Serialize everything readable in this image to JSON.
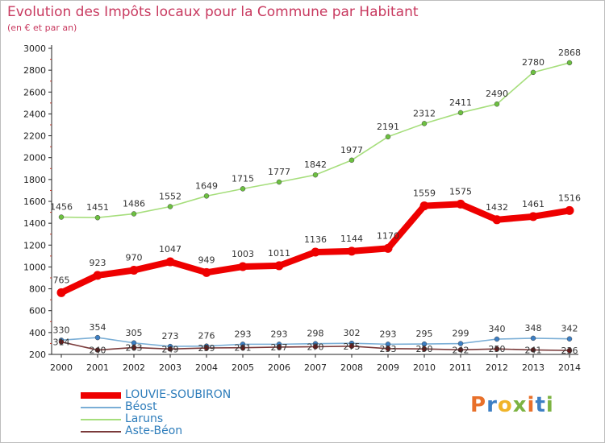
{
  "title": "Evolution des Impôts locaux pour la Commune par Habitant",
  "subtitle": "(en € et par an)",
  "logo": {
    "text": "Proxiti",
    "colors": [
      "#e8702a",
      "#3d7fc4",
      "#f0b429",
      "#7cb342",
      "#e8702a",
      "#3d7fc4",
      "#7cb342"
    ]
  },
  "chart_data": {
    "type": "line",
    "title": "Evolution des Impôts locaux pour la Commune par Habitant",
    "subtitle": "(en € et par an)",
    "xlabel": "",
    "ylabel": "",
    "categories": [
      "2000",
      "2001",
      "2002",
      "2003",
      "2004",
      "2005",
      "2006",
      "2007",
      "2008",
      "2009",
      "2010",
      "2011",
      "2012",
      "2013",
      "2014"
    ],
    "yticks": [
      200,
      400,
      600,
      800,
      1000,
      1200,
      1400,
      1600,
      1800,
      2000,
      2200,
      2400,
      2600,
      2800,
      3000
    ],
    "ylim": [
      200,
      3000
    ],
    "grid": false,
    "legend_position": "bottom-left",
    "series": [
      {
        "name": "Laruns",
        "color": "#a6de7c",
        "marker": "#6cc040",
        "thick": false,
        "values": [
          1456,
          1451,
          1486,
          1552,
          1649,
          1715,
          1777,
          1842,
          1977,
          2191,
          2312,
          2411,
          2490,
          2780,
          2868
        ],
        "labels": [
          "1456",
          "1451",
          "1486",
          "1552",
          "1649",
          "1715",
          "1777",
          "1842",
          "1977",
          "2191",
          "2312",
          "2411",
          "2490",
          "2780",
          "2868"
        ]
      },
      {
        "name": "LOUVIE-SOUBIRON",
        "color": "#ee0000",
        "marker": "#ee0000",
        "thick": true,
        "values": [
          765,
          923,
          970,
          1047,
          949,
          1003,
          1011,
          1136,
          1144,
          1170,
          1559,
          1575,
          1432,
          1461,
          1516
        ],
        "labels": [
          "765",
          "923",
          "970",
          "1047",
          "949",
          "1003",
          "1011",
          "1136",
          "1144",
          "1170",
          "1559",
          "1575",
          "1432",
          "1461",
          "1516"
        ]
      },
      {
        "name": "Béost",
        "color": "#7aaed6",
        "marker": "#3d7fc4",
        "thick": false,
        "values": [
          330,
          354,
          305,
          273,
          276,
          293,
          293,
          298,
          302,
          293,
          295,
          299,
          340,
          348,
          342
        ],
        "labels": [
          "330",
          "354",
          "305",
          "273",
          "276",
          "293",
          "293",
          "298",
          "302",
          "293",
          "295",
          "299",
          "340",
          "348",
          "342"
        ]
      },
      {
        "name": "Aste-Béon",
        "color": "#7a3a3a",
        "marker": "#6b1a1a",
        "thick": false,
        "values": [
          314,
          240,
          263,
          249,
          259,
          261,
          267,
          270,
          275,
          253,
          250,
          242,
          250,
          241,
          236
        ],
        "labels": [
          "314",
          "240",
          "263",
          "249",
          "259",
          "261",
          "267",
          "270",
          "275",
          "253",
          "250",
          "242",
          "250",
          "241",
          "236"
        ]
      }
    ],
    "legend_order": [
      "LOUVIE-SOUBIRON",
      "Béost",
      "Laruns",
      "Aste-Béon"
    ]
  }
}
